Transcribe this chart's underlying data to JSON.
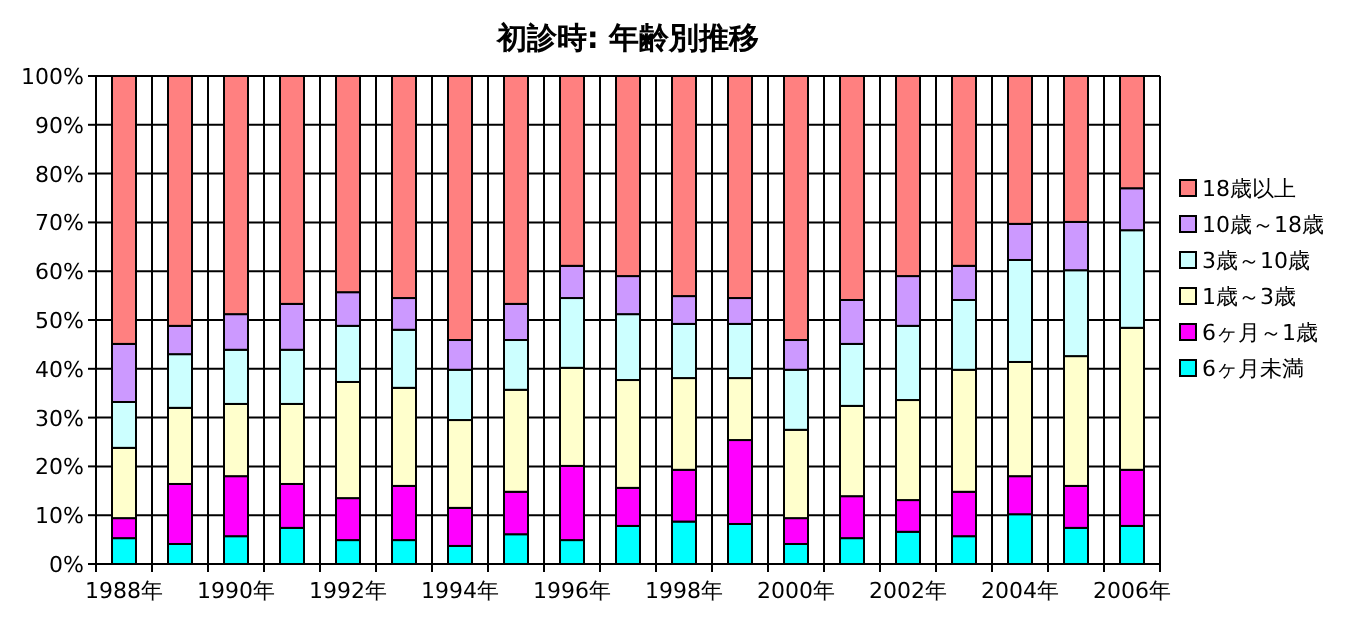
{
  "chart_data": {
    "type": "bar",
    "stacked": true,
    "title": "初診時: 年齢別推移",
    "categories": [
      "1988年",
      null,
      "1990年",
      null,
      "1992年",
      null,
      "1994年",
      null,
      "1996年",
      null,
      "1998年",
      null,
      "2000年",
      null,
      "2002年",
      null,
      "2004年",
      null,
      "2006年"
    ],
    "ylim": [
      0,
      100
    ],
    "yticks": [
      {
        "value": 0,
        "label": "0%"
      },
      {
        "value": 10,
        "label": "10%"
      },
      {
        "value": 20,
        "label": "20%"
      },
      {
        "value": 30,
        "label": "30%"
      },
      {
        "value": 40,
        "label": "40%"
      },
      {
        "value": 50,
        "label": "50%"
      },
      {
        "value": 60,
        "label": "60%"
      },
      {
        "value": 70,
        "label": "70%"
      },
      {
        "value": 80,
        "label": "80%"
      },
      {
        "value": 90,
        "label": "90%"
      },
      {
        "value": 100,
        "label": "100%"
      }
    ],
    "grid": true,
    "legend": "right",
    "series": [
      {
        "name": "6ヶ月未満",
        "color": "#00ffff",
        "values": [
          5.3,
          4.1,
          5.7,
          7.4,
          4.9,
          4.9,
          3.7,
          6.1,
          4.9,
          7.8,
          8.7,
          8.2,
          4.1,
          5.3,
          6.6,
          5.7,
          10.2,
          7.4,
          7.8
        ]
      },
      {
        "name": "6ヶ月～1歳",
        "color": "#ff00ff",
        "values": [
          4.1,
          12.3,
          12.3,
          9.0,
          8.6,
          11.1,
          7.8,
          8.7,
          15.2,
          7.8,
          10.6,
          17.2,
          5.3,
          8.6,
          6.5,
          9.1,
          7.8,
          8.6,
          11.5
        ]
      },
      {
        "name": "1歳～3歳",
        "color": "#ffffcc",
        "values": [
          14.4,
          15.6,
          14.8,
          16.4,
          23.8,
          20.1,
          18.0,
          20.9,
          20.1,
          22.1,
          18.8,
          12.7,
          18.1,
          18.5,
          20.5,
          25.0,
          23.4,
          26.6,
          29.1
        ]
      },
      {
        "name": "3歳～10歳",
        "color": "#ccffff",
        "values": [
          9.4,
          11.0,
          11.1,
          11.1,
          11.5,
          11.9,
          10.3,
          10.2,
          14.3,
          13.5,
          11.1,
          11.1,
          12.3,
          12.7,
          15.2,
          14.3,
          20.9,
          17.6,
          20.0
        ]
      },
      {
        "name": "10歳～18歳",
        "color": "#cc99ff",
        "values": [
          11.9,
          5.8,
          7.3,
          9.4,
          6.9,
          6.5,
          6.1,
          7.4,
          6.6,
          7.8,
          5.7,
          5.3,
          6.1,
          9.0,
          10.2,
          7.0,
          7.4,
          9.9,
          8.6
        ]
      },
      {
        "name": "18歳以上",
        "color": "#ff8080",
        "values": [
          54.9,
          51.2,
          48.8,
          46.7,
          44.3,
          45.5,
          54.1,
          46.7,
          38.9,
          41.0,
          45.1,
          45.5,
          54.1,
          45.9,
          41.0,
          38.9,
          30.3,
          29.9,
          23.0
        ]
      }
    ]
  }
}
